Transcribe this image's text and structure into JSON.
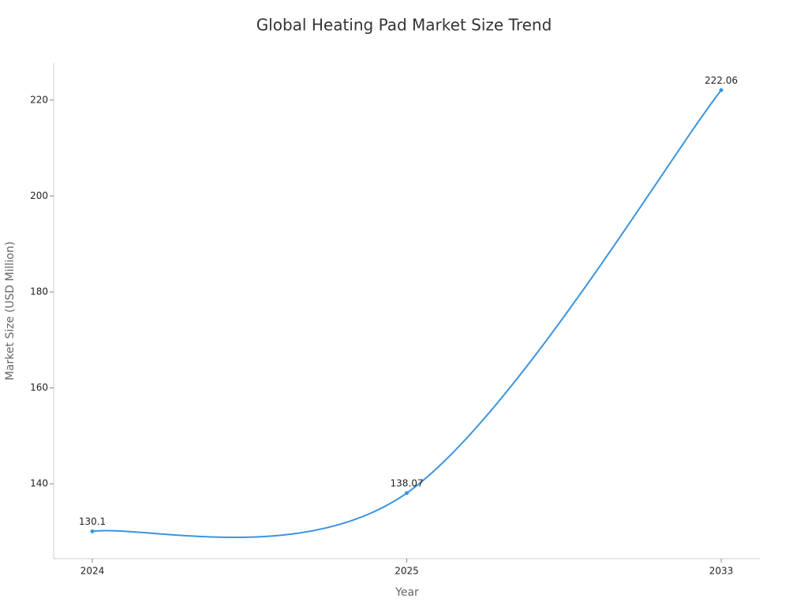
{
  "chart_data": {
    "type": "line",
    "title": "Global Heating Pad Market Size Trend",
    "x_label": "Year",
    "y_label": "Market Size (USD Million)",
    "categories": [
      "2024",
      "2025",
      "2033"
    ],
    "series": [
      {
        "name": "Market Size",
        "color": "#3b94e0",
        "values": [
          130.1,
          138.07,
          222.06
        ]
      }
    ],
    "ylim": [
      124.4,
      227.7
    ],
    "yticks": [
      140,
      160,
      180,
      200,
      220
    ],
    "grid": false,
    "smooth": true
  }
}
